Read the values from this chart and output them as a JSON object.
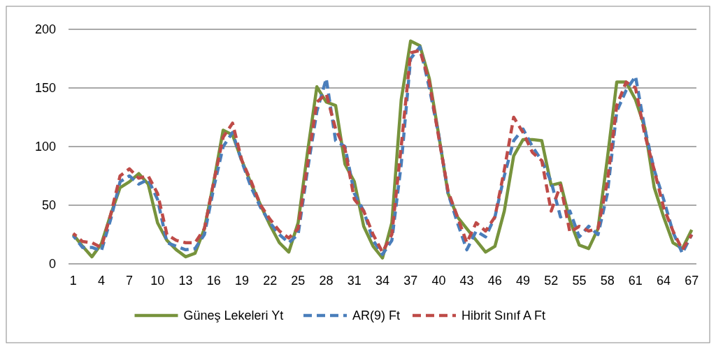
{
  "chart_data": {
    "type": "line",
    "categories": [
      "1",
      null,
      null,
      "4",
      null,
      null,
      "7",
      null,
      null,
      "10",
      null,
      null,
      "13",
      null,
      null,
      "16",
      null,
      null,
      "19",
      null,
      null,
      "22",
      null,
      null,
      "25",
      null,
      null,
      "28",
      null,
      null,
      "31",
      null,
      null,
      "34",
      null,
      null,
      "37",
      null,
      null,
      "40",
      null,
      null,
      "43",
      null,
      null,
      "46",
      null,
      null,
      "49",
      null,
      null,
      "52",
      null,
      null,
      "55",
      null,
      null,
      "58",
      null,
      null,
      "61",
      null,
      null,
      "64",
      null,
      null,
      "67"
    ],
    "ylim": [
      0,
      200
    ],
    "yticks": [
      0,
      50,
      100,
      150,
      200
    ],
    "grid": "y",
    "legend": "bottom",
    "marker": "none",
    "series": [
      {
        "name": "Güneş Lekeleri Yt",
        "color": "#77933c",
        "line_style": "solid",
        "values": [
          25,
          15,
          6,
          17,
          42,
          65,
          70,
          77,
          68,
          35,
          20,
          12,
          6,
          9,
          30,
          70,
          114,
          110,
          88,
          68,
          50,
          33,
          18,
          10,
          35,
          95,
          151,
          138,
          135,
          85,
          70,
          32,
          15,
          5,
          35,
          140,
          190,
          186,
          158,
          110,
          60,
          40,
          30,
          20,
          10,
          15,
          45,
          92,
          106,
          106,
          105,
          67,
          69,
          37,
          16,
          13,
          30,
          90,
          155,
          155,
          140,
          116,
          65,
          40,
          18,
          13,
          29
        ]
      },
      {
        "name": "AR(9) Ft",
        "color": "#4a7ebb",
        "line_style": "dashed",
        "values": [
          24,
          14,
          14,
          11,
          38,
          70,
          75,
          68,
          72,
          55,
          18,
          15,
          12,
          13,
          25,
          65,
          100,
          112,
          87,
          65,
          48,
          35,
          25,
          18,
          25,
          80,
          130,
          158,
          105,
          100,
          60,
          45,
          20,
          8,
          20,
          85,
          175,
          185,
          150,
          110,
          60,
          35,
          12,
          28,
          23,
          40,
          75,
          105,
          115,
          100,
          88,
          70,
          40,
          45,
          23,
          32,
          25,
          60,
          130,
          148,
          160,
          115,
          80,
          55,
          27,
          9,
          25
        ]
      },
      {
        "name": "Hibrit Sınıf A Ft",
        "color": "#be4b48",
        "line_style": "dashed",
        "values": [
          26,
          19,
          18,
          14,
          42,
          75,
          81,
          73,
          75,
          60,
          25,
          20,
          18,
          18,
          30,
          70,
          108,
          120,
          88,
          70,
          50,
          38,
          28,
          22,
          30,
          85,
          138,
          145,
          115,
          98,
          55,
          45,
          25,
          10,
          25,
          100,
          180,
          182,
          155,
          108,
          62,
          40,
          18,
          35,
          28,
          40,
          80,
          125,
          112,
          95,
          88,
          45,
          67,
          27,
          32,
          28,
          30,
          70,
          135,
          155,
          150,
          110,
          80,
          48,
          28,
          12,
          25
        ]
      }
    ]
  }
}
